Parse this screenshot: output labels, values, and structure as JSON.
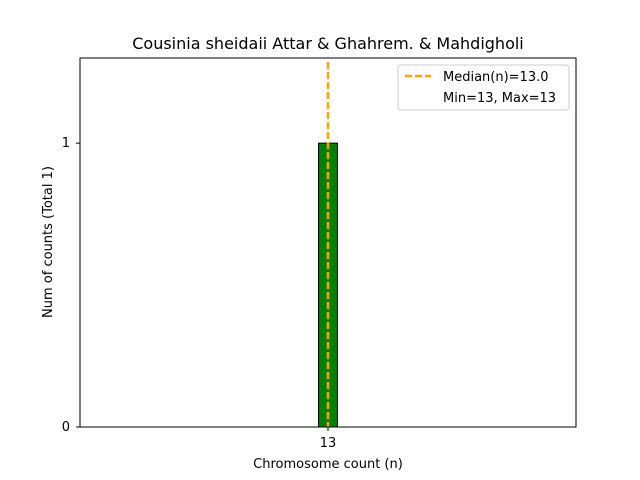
{
  "chart_data": {
    "type": "bar",
    "title": "Cousinia sheidaii Attar & Ghahrem. & Mahdigholi",
    "xlabel": "Chromosome count (n)",
    "ylabel": "Num of counts     (Total 1)",
    "categories": [
      "13"
    ],
    "x": [
      13
    ],
    "values": [
      1
    ],
    "xlim": [
      0,
      26
    ],
    "ylim": [
      0,
      1.3
    ],
    "yticks": [
      0,
      1
    ],
    "xticks": [
      13
    ],
    "median": 13.0,
    "legend": {
      "placement": "top-right",
      "entries": [
        "Median(n)=13.0",
        "Min=13, Max=13"
      ]
    },
    "colors": {
      "bar": "#008000",
      "bar_edge": "#000000",
      "median_line": "#ffa500"
    },
    "grid": false
  }
}
